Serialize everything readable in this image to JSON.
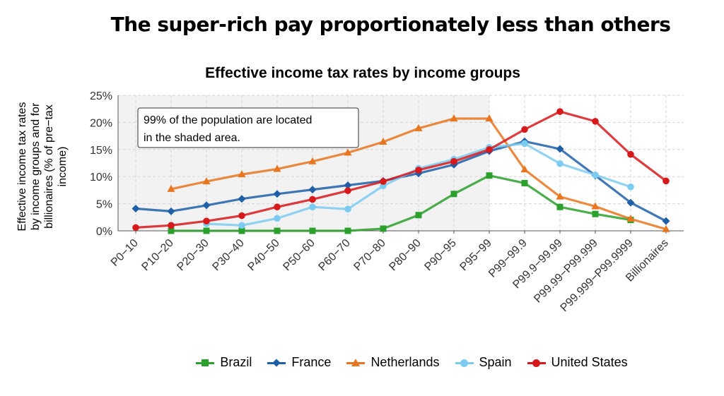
{
  "headline": "The super-rich pay proportionately less than others",
  "chart_data": {
    "type": "line",
    "title": "Effective income tax rates by income groups",
    "ylabel": "Effective income tax rates by income groups  and for billionaires (% of pre−tax income)",
    "xlabel": "",
    "categories": [
      "P0−10",
      "P10−20",
      "P20−30",
      "P30−40",
      "P40−50",
      "P50−60",
      "P60−70",
      "P70−80",
      "P80−90",
      "P90−95",
      "P95−99",
      "P99−99.9",
      "P99.9−99.99",
      "P99.99−P99.999",
      "P99.999−P99.9999",
      "Billionaires"
    ],
    "yticks": [
      "0%",
      "5%",
      "10%",
      "15%",
      "20%",
      "25%"
    ],
    "ylim": [
      0,
      25
    ],
    "grid": true,
    "legend_position": "bottom",
    "annotation": {
      "lines": [
        "99% of the population are located",
        "in the shaded area."
      ],
      "shaded_range": [
        "P0−10",
        "P95−99"
      ]
    },
    "series": [
      {
        "name": "Brazil",
        "color": "#2ca02c",
        "marker": "square",
        "values": [
          null,
          0.0,
          0.0,
          0.0,
          0.0,
          0.0,
          0.0,
          0.4,
          2.9,
          6.8,
          10.2,
          8.8,
          4.4,
          3.1,
          2.0,
          null
        ]
      },
      {
        "name": "France",
        "color": "#1f5fa8",
        "marker": "diamond",
        "values": [
          4.1,
          3.6,
          4.7,
          5.9,
          6.8,
          7.6,
          8.4,
          9.2,
          10.6,
          12.2,
          14.7,
          16.5,
          15.1,
          10.2,
          5.2,
          1.8
        ]
      },
      {
        "name": "Netherlands",
        "color": "#e8761f",
        "marker": "triangle",
        "values": [
          null,
          7.7,
          9.1,
          10.4,
          11.4,
          12.8,
          14.4,
          16.4,
          18.9,
          20.7,
          20.7,
          11.3,
          6.3,
          4.5,
          2.2,
          0.3
        ]
      },
      {
        "name": "Spain",
        "color": "#7ccbf0",
        "marker": "circle",
        "values": [
          null,
          null,
          1.3,
          1.0,
          2.3,
          4.4,
          4.0,
          8.3,
          11.5,
          13.2,
          15.4,
          16.1,
          12.4,
          10.3,
          8.1,
          null
        ]
      },
      {
        "name": "United States",
        "color": "#d7191c",
        "marker": "circle",
        "values": [
          0.6,
          1.0,
          1.8,
          2.8,
          4.4,
          5.8,
          7.4,
          9.1,
          11.2,
          12.8,
          15.0,
          18.7,
          22.0,
          20.2,
          14.1,
          9.2
        ]
      }
    ]
  }
}
